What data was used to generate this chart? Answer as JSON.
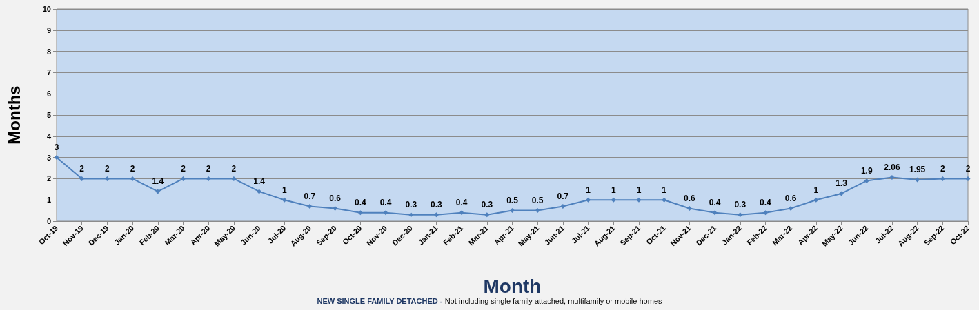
{
  "chart_data": {
    "type": "line",
    "xlabel": "Month",
    "ylabel": "Months",
    "annotations": [
      "NEW SINGLE FAMILY DETACHED - Not including single family attached, multifamily or mobile homes"
    ],
    "categories": [
      "Oct-19",
      "Nov-19",
      "Dec-19",
      "Jan-20",
      "Feb-20",
      "Mar-20",
      "Apr-20",
      "May-20",
      "Jun-20",
      "Jul-20",
      "Aug-20",
      "Sep-20",
      "Oct-20",
      "Nov-20",
      "Dec-20",
      "Jan-21",
      "Feb-21",
      "Mar-21",
      "Apr-21",
      "May-21",
      "Jun-21",
      "Jul-21",
      "Aug-21",
      "Sep-21",
      "Oct-21",
      "Nov-21",
      "Dec-21",
      "Jan-22",
      "Feb-22",
      "Mar-22",
      "Apr-22",
      "May-22",
      "Jun-22",
      "Jul-22",
      "Aug-22",
      "Sep-22",
      "Oct-22"
    ],
    "series": [
      {
        "color": "#4f81bd",
        "values": [
          3,
          2,
          2,
          2,
          1.4,
          2,
          2,
          2,
          1.4,
          1,
          0.7,
          0.6,
          0.4,
          0.4,
          0.3,
          0.3,
          0.4,
          0.3,
          0.5,
          0.5,
          0.7,
          1,
          1,
          1,
          1,
          0.6,
          0.4,
          0.3,
          0.4,
          0.6,
          1,
          1.3,
          1.9,
          2.06,
          1.95,
          2,
          2
        ]
      }
    ],
    "ylim": [
      0,
      10
    ],
    "yticks": [
      0,
      1,
      2,
      3,
      4,
      5,
      6,
      7,
      8,
      9,
      10
    ],
    "grid": "y",
    "marker": "diamond",
    "line_style": "solid",
    "data_labels": true
  }
}
